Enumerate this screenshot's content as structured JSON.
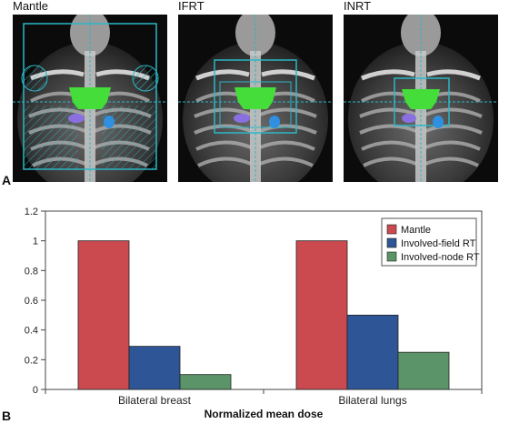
{
  "panel_a": {
    "label": "A",
    "images": [
      {
        "title": "Mantle",
        "field": "mantle"
      },
      {
        "title": "IFRT",
        "field": "involved-field"
      },
      {
        "title": "INRT",
        "field": "involved-node"
      }
    ]
  },
  "panel_b": {
    "label": "B"
  },
  "colors": {
    "mantle": "#cb4a4f",
    "involved_field": "#2e5596",
    "involved_node": "#5a9468",
    "field_outline": "#2bb7c6",
    "tumor": "#44dd3a",
    "organ_blue": "#2f8fe0",
    "organ_purple": "#8a6fe0"
  },
  "chart_data": {
    "type": "bar",
    "categories": [
      "Bilateral breast",
      "Bilateral lungs"
    ],
    "series": [
      {
        "name": "Mantle",
        "values": [
          1.0,
          1.0
        ]
      },
      {
        "name": "Involved-field RT",
        "values": [
          0.29,
          0.5
        ]
      },
      {
        "name": "Involved-node RT",
        "values": [
          0.1,
          0.25
        ]
      }
    ],
    "yticks": [
      "0",
      "0.2",
      "0.4",
      "0.6",
      "0.8",
      "1",
      "1.2"
    ],
    "ylim": [
      0,
      1.2
    ],
    "xlabel": "Normalized mean dose",
    "ylabel": "",
    "legend": "top-right",
    "grid": false
  }
}
